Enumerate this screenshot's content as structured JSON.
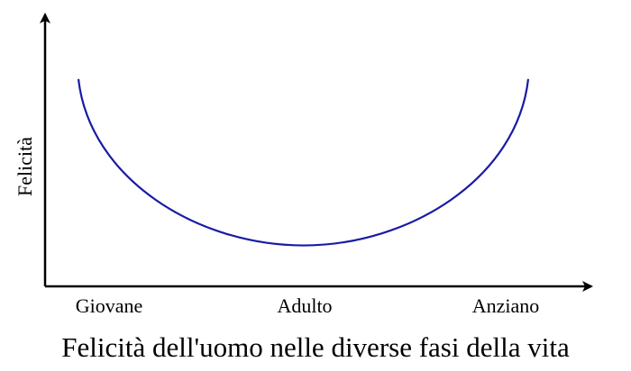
{
  "chart_data": {
    "type": "line",
    "title": "Felicità dell'uomo nelle diverse fasi della vita",
    "ylabel": "Felicità",
    "categories": [
      "Giovane",
      "Adulto",
      "Anziano"
    ],
    "series": [
      {
        "name": null,
        "color": "#1a1aa6",
        "values": [
          76,
          15,
          76
        ]
      }
    ],
    "ylim": [
      0,
      100
    ]
  }
}
